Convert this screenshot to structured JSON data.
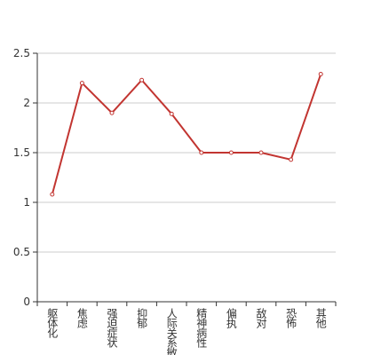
{
  "chart_data": {
    "type": "line",
    "categories": [
      "躯体化",
      "焦虑",
      "强迫症状",
      "抑郁",
      "人际关系敏感",
      "精神病性",
      "偏执",
      "敌对",
      "恐怖",
      "其他"
    ],
    "values": [
      1.08,
      2.2,
      1.9,
      2.23,
      1.89,
      1.5,
      1.5,
      1.5,
      1.43,
      2.29
    ],
    "color": "#c23531",
    "ylim": [
      0,
      2.5
    ],
    "yticks": [
      0,
      0.5,
      1,
      1.5,
      2,
      2.5
    ],
    "grid": true
  }
}
